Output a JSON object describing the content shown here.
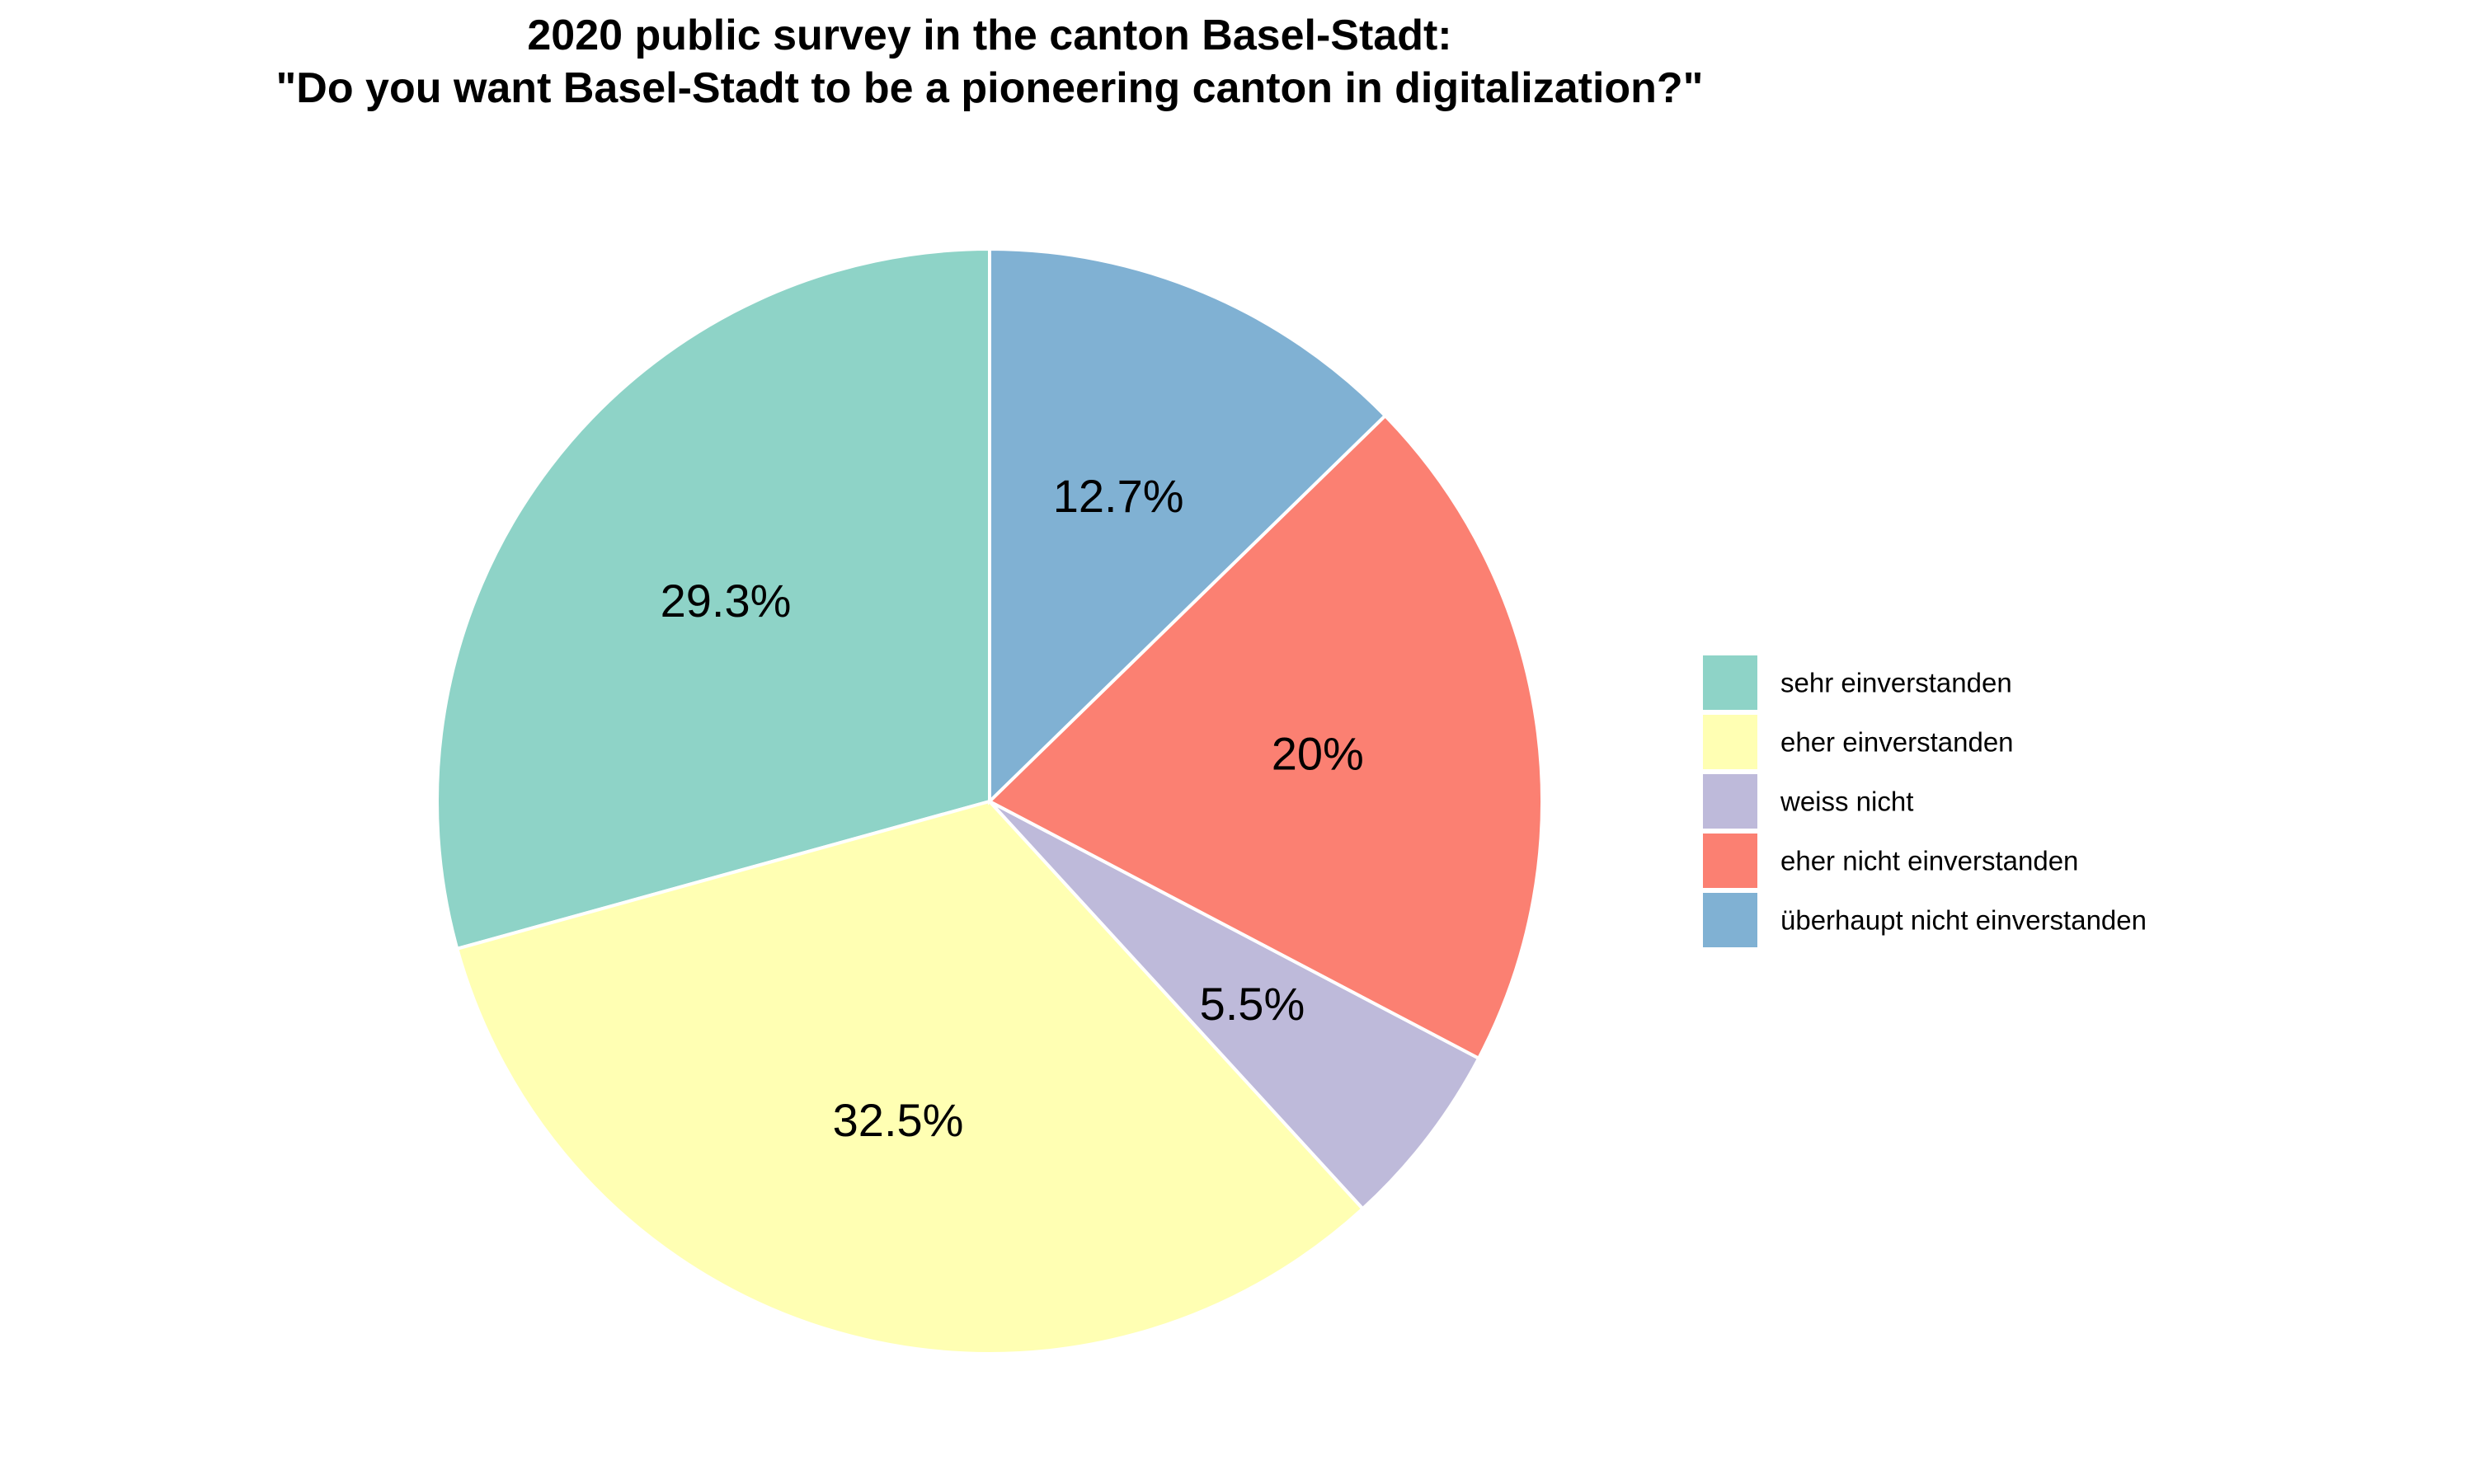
{
  "chart_data": {
    "type": "pie",
    "title_lines": [
      "2020 public survey in the canton Basel-Stadt:",
      "\"Do you want Basel-Stadt to be a pioneering canton in digitalization?\""
    ],
    "start": "top",
    "direction": "counterclockwise",
    "slices": [
      {
        "label": "sehr einverstanden",
        "value": 29.3,
        "value_label": "29.3%",
        "color": "#8ED3C7"
      },
      {
        "label": "eher einverstanden",
        "value": 32.5,
        "value_label": "32.5%",
        "color": "#FFFFB3"
      },
      {
        "label": "weiss nicht",
        "value": 5.5,
        "value_label": "5.5%",
        "color": "#BEBADA"
      },
      {
        "label": "eher nicht einverstanden",
        "value": 20,
        "value_label": "20%",
        "color": "#FB8072"
      },
      {
        "label": "überhaupt nicht einverstanden",
        "value": 12.7,
        "value_label": "12.7%",
        "color": "#80B1D3"
      }
    ],
    "legend_position": "right"
  }
}
